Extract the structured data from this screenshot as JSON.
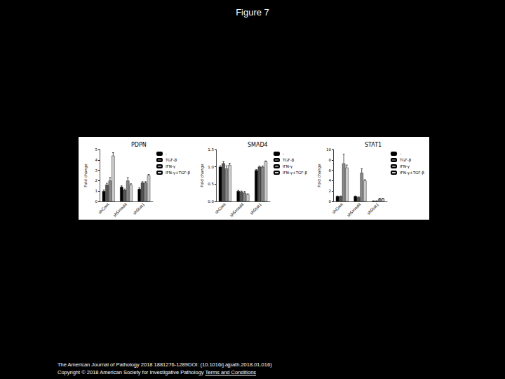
{
  "page": {
    "heading": "Figure 7",
    "citation": "The American Journal of Pathology 2018 1881276-1289DOI: (10.1016/j.ajpath.2018.01.016)",
    "copyright": "Copyright © 2018 American Society for Investigative Pathology",
    "link": "Terms and Conditions"
  },
  "chart_data": [
    {
      "type": "bar",
      "title": "PDPN",
      "y_label": "Fold change",
      "categories": [
        "shCont",
        "shSmad4",
        "shStat1"
      ],
      "series": [
        {
          "name": "-",
          "color": "#000000",
          "values": [
            1.0,
            1.4,
            1.2
          ],
          "errors": [
            0.1,
            0.1,
            0.1
          ]
        },
        {
          "name": "TGF-β",
          "color": "#555555",
          "values": [
            1.6,
            1.1,
            1.8
          ],
          "errors": [
            0.15,
            0.1,
            0.1
          ]
        },
        {
          "name": "IFN-γ",
          "color": "#888888",
          "values": [
            2.0,
            2.0,
            1.8
          ],
          "errors": [
            0.3,
            0.3,
            0.1
          ]
        },
        {
          "name": "IFN-γ+TGF-β",
          "color": "#cccccc",
          "values": [
            4.4,
            1.6,
            2.5
          ],
          "errors": [
            0.3,
            0.1,
            0.1
          ]
        }
      ],
      "ylim": [
        0,
        5
      ],
      "yticks": [
        0,
        1,
        2,
        3,
        4,
        5
      ],
      "grid": false,
      "legend": "right"
    },
    {
      "type": "bar",
      "title": "SMAD4",
      "y_label": "Fold change",
      "categories": [
        "shCont",
        "shSmad4",
        "shStat1"
      ],
      "series": [
        {
          "name": "-",
          "color": "#000000",
          "values": [
            1.0,
            0.3,
            0.9
          ],
          "errors": [
            0.03,
            0.02,
            0.02
          ]
        },
        {
          "name": "TGF-β",
          "color": "#555555",
          "values": [
            1.1,
            0.28,
            1.0
          ],
          "errors": [
            0.05,
            0.02,
            0.02
          ]
        },
        {
          "name": "IFN-γ",
          "color": "#888888",
          "values": [
            0.95,
            0.25,
            1.0
          ],
          "errors": [
            0.08,
            0.04,
            0.02
          ]
        },
        {
          "name": "IFN-γ+TGF-β",
          "color": "#cccccc",
          "values": [
            1.05,
            0.2,
            1.15
          ],
          "errors": [
            0.05,
            0.02,
            0.02
          ]
        }
      ],
      "ylim": [
        0,
        1.5
      ],
      "yticks": [
        {
          "value": 0,
          "label": "0.0"
        },
        0.5,
        {
          "value": 1,
          "label": "1.0"
        },
        1.5
      ],
      "grid": false,
      "legend": "right"
    },
    {
      "type": "bar",
      "title": "STAT1",
      "y_label": "Fold change",
      "categories": [
        "shCont",
        "shSmad4",
        "shStat1"
      ],
      "series": [
        {
          "name": "-",
          "color": "#000000",
          "values": [
            1.0,
            1.0,
            0.1
          ],
          "errors": [
            0.05,
            0.05,
            0.02
          ]
        },
        {
          "name": "TGF-β",
          "color": "#555555",
          "values": [
            1.0,
            0.8,
            0.1
          ],
          "errors": [
            0.05,
            0.1,
            0.02
          ]
        },
        {
          "name": "IFN-γ",
          "color": "#888888",
          "values": [
            7.3,
            5.5,
            0.5
          ],
          "errors": [
            1.8,
            0.8,
            0.1
          ]
        },
        {
          "name": "IFN-γ+TGF-β",
          "color": "#cccccc",
          "values": [
            6.5,
            4.0,
            0.5
          ],
          "errors": [
            0.5,
            0.2,
            0.1
          ]
        }
      ],
      "ylim": [
        0,
        10
      ],
      "yticks": [
        0,
        2,
        4,
        6,
        8,
        10
      ],
      "grid": false,
      "legend": "right"
    }
  ]
}
